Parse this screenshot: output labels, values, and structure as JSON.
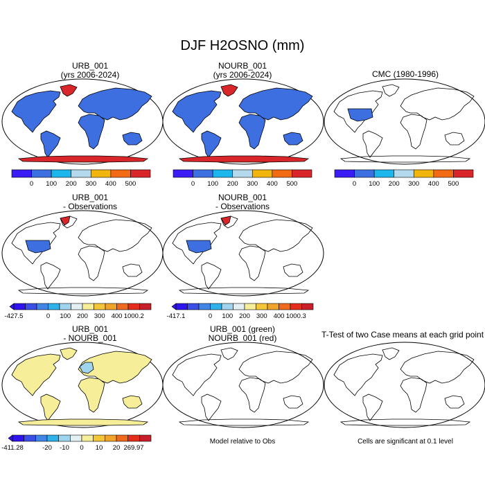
{
  "main_title": "DJF H2OSNO (mm)",
  "colors": {
    "cb7": [
      "#3b1cf5",
      "#3d6fe0",
      "#1cb6ec",
      "#b4d8ec",
      "#f2b50e",
      "#f26a14",
      "#d8262b"
    ],
    "cb12": [
      "#2f14f0",
      "#3b4fe6",
      "#3f86e6",
      "#2fb2ea",
      "#9fd4ee",
      "#e3eff2",
      "#f7ee9a",
      "#f3c63a",
      "#f1a42a",
      "#f06a1e",
      "#e52d1c",
      "#c81e2a"
    ],
    "snow_blue": "#3d6fe0",
    "snow_red": "#d8262b",
    "diff_yellow": "#f7ee9a",
    "green": "#22bb22",
    "red": "#e00000"
  },
  "panels": [
    {
      "id": "urb",
      "title": [
        "URB_001",
        "(yrs 2006-2024)"
      ],
      "colorbar": {
        "labels": [
          "0",
          "100",
          "200",
          "300",
          "400",
          "500"
        ]
      }
    },
    {
      "id": "nourb",
      "title": [
        "NOURB_001",
        "(yrs 2006-2024)"
      ],
      "colorbar": {
        "labels": [
          "0",
          "100",
          "200",
          "300",
          "400",
          "500"
        ]
      }
    },
    {
      "id": "cmc",
      "title": [
        "CMC (1980-1996)"
      ],
      "colorbar": {
        "labels": [
          "0",
          "100",
          "200",
          "300",
          "400",
          "500"
        ]
      }
    },
    {
      "id": "urb-obs",
      "title": [
        "URB_001",
        "- Observations"
      ],
      "colorbar": {
        "labels": [
          "-427.5",
          "0",
          "100",
          "200",
          "300",
          "400",
          "1000.2"
        ]
      }
    },
    {
      "id": "nourb-obs",
      "title": [
        "NOURB_001",
        "- Observations"
      ],
      "colorbar": {
        "labels": [
          "-417.1",
          "0",
          "100",
          "200",
          "300",
          "400",
          "1000.3"
        ]
      }
    },
    {
      "id": "urb-nourb",
      "title": [
        "URB_001",
        "- NOURB_001"
      ],
      "colorbar": {
        "labels": [
          "-411.28",
          "-20",
          "-10",
          "0",
          "10",
          "20",
          "269.97"
        ]
      }
    },
    {
      "id": "model-rel",
      "title": [
        "URB_001 (green)",
        "NOURB_001 (red)"
      ],
      "note": "Model relative to Obs"
    },
    {
      "id": "ttest",
      "title": [
        "T-Test of two Case means at each grid point"
      ],
      "note": "Cells are significant at 0.1 level"
    }
  ],
  "chart_data": [
    {
      "type": "heatmap",
      "title": "URB_001 (yrs 2006-2024)",
      "legend_levels": [
        "0",
        "100",
        "200",
        "300",
        "400",
        "500"
      ]
    },
    {
      "type": "heatmap",
      "title": "NOURB_001 (yrs 2006-2024)",
      "legend_levels": [
        "0",
        "100",
        "200",
        "300",
        "400",
        "500"
      ]
    },
    {
      "type": "heatmap",
      "title": "CMC (1980-1996)",
      "legend_levels": [
        "0",
        "100",
        "200",
        "300",
        "400",
        "500"
      ]
    },
    {
      "type": "heatmap",
      "title": "URB_001 - Observations",
      "legend_levels": [
        "-427.5",
        "0",
        "100",
        "200",
        "300",
        "400",
        "1000.2"
      ]
    },
    {
      "type": "heatmap",
      "title": "NOURB_001 - Observations",
      "legend_levels": [
        "-417.1",
        "0",
        "100",
        "200",
        "300",
        "400",
        "1000.3"
      ]
    },
    {
      "type": "heatmap",
      "title": "URB_001 - NOURB_001",
      "legend_levels": [
        "-411.28",
        "-20",
        "-10",
        "0",
        "10",
        "20",
        "269.97"
      ]
    },
    {
      "type": "heatmap",
      "title": "URB_001 (green) NOURB_001 (red)"
    },
    {
      "type": "heatmap",
      "title": "T-Test of two Case means at each grid point"
    }
  ]
}
